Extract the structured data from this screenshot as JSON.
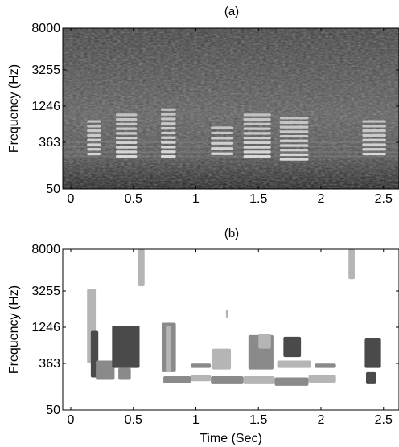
{
  "figure": {
    "panel_a_title": "(a)",
    "panel_b_title": "(b)"
  },
  "chart_data": [
    {
      "type": "heatmap",
      "title": "(a)",
      "xlabel": "",
      "ylabel": "Frequency (Hz)",
      "x_tick_labels": [
        "0",
        "0.5",
        "1",
        "1.5",
        "2",
        "2.5"
      ],
      "x_ticks": [
        0,
        0.5,
        1,
        1.5,
        2,
        2.5
      ],
      "xlim": [
        0,
        2.65
      ],
      "y_tick_labels": [
        "50",
        "363",
        "1246",
        "3255",
        "8000"
      ],
      "yscale": "erb-like (non-linear)",
      "colormap": "grayscale",
      "harmonic_segments": [
        {
          "t0": 0.13,
          "t1": 0.24,
          "f": [
            200,
            800
          ]
        },
        {
          "t0": 0.36,
          "t1": 0.53,
          "f": [
            180,
            1000
          ]
        },
        {
          "t0": 0.72,
          "t1": 0.84,
          "f": [
            180,
            1200
          ]
        },
        {
          "t0": 1.12,
          "t1": 1.3,
          "f": [
            200,
            650
          ]
        },
        {
          "t0": 1.38,
          "t1": 1.6,
          "f": [
            180,
            1000
          ]
        },
        {
          "t0": 1.67,
          "t1": 1.9,
          "f": [
            160,
            900
          ]
        },
        {
          "t0": 2.33,
          "t1": 2.52,
          "f": [
            200,
            800
          ]
        }
      ]
    },
    {
      "type": "heatmap",
      "title": "(b)",
      "xlabel": "Time (Sec)",
      "ylabel": "Frequency (Hz)",
      "x_tick_labels": [
        "0",
        "0.5",
        "1",
        "1.5",
        "2",
        "2.5"
      ],
      "x_ticks": [
        0,
        0.5,
        1,
        1.5,
        2,
        2.5
      ],
      "xlim": [
        0,
        2.65
      ],
      "y_tick_labels": [
        "50",
        "363",
        "1246",
        "3255",
        "8000"
      ],
      "yscale": "erb-like (non-linear)",
      "legend": "none",
      "segment_colors": {
        "light": "#b5b5b5",
        "mid": "#8a8a8a",
        "dark": "#4a4a4a"
      },
      "segments": [
        {
          "t0": 0.13,
          "t1": 0.2,
          "f0": 363,
          "f1": 3400,
          "shade": "light"
        },
        {
          "t0": 0.16,
          "t1": 0.22,
          "f0": 200,
          "f1": 1100,
          "shade": "dark"
        },
        {
          "t0": 0.2,
          "t1": 0.35,
          "f0": 180,
          "f1": 400,
          "shade": "mid"
        },
        {
          "t0": 0.33,
          "t1": 0.55,
          "f0": 300,
          "f1": 1300,
          "shade": "dark"
        },
        {
          "t0": 0.38,
          "t1": 0.48,
          "f0": 180,
          "f1": 300,
          "shade": "mid"
        },
        {
          "t0": 0.54,
          "t1": 0.59,
          "f0": 3600,
          "f1": 8000,
          "shade": "light"
        },
        {
          "t0": 0.73,
          "t1": 0.84,
          "f0": 250,
          "f1": 1400,
          "shade": "mid"
        },
        {
          "t0": 0.76,
          "t1": 0.8,
          "f0": 250,
          "f1": 1300,
          "shade": "light"
        },
        {
          "t0": 0.74,
          "t1": 0.96,
          "f0": 155,
          "f1": 210,
          "shade": "mid"
        },
        {
          "t0": 0.96,
          "t1": 1.12,
          "f0": 170,
          "f1": 220,
          "shade": "light"
        },
        {
          "t0": 0.96,
          "t1": 1.12,
          "f0": 300,
          "f1": 360,
          "shade": "mid"
        },
        {
          "t0": 1.13,
          "t1": 1.28,
          "f0": 280,
          "f1": 600,
          "shade": "light"
        },
        {
          "t0": 1.12,
          "t1": 1.38,
          "f0": 150,
          "f1": 210,
          "shade": "mid"
        },
        {
          "t0": 1.24,
          "t1": 1.26,
          "f0": 1600,
          "f1": 2000,
          "shade": "light"
        },
        {
          "t0": 1.38,
          "t1": 1.63,
          "f0": 150,
          "f1": 210,
          "shade": "light"
        },
        {
          "t0": 1.42,
          "t1": 1.62,
          "f0": 280,
          "f1": 950,
          "shade": "mid"
        },
        {
          "t0": 1.5,
          "t1": 1.6,
          "f0": 600,
          "f1": 1000,
          "shade": "light"
        },
        {
          "t0": 1.63,
          "t1": 1.9,
          "f0": 140,
          "f1": 200,
          "shade": "mid"
        },
        {
          "t0": 1.65,
          "t1": 1.92,
          "f0": 300,
          "f1": 400,
          "shade": "light"
        },
        {
          "t0": 1.7,
          "t1": 1.84,
          "f0": 450,
          "f1": 900,
          "shade": "dark"
        },
        {
          "t0": 1.9,
          "t1": 2.12,
          "f0": 160,
          "f1": 220,
          "shade": "light"
        },
        {
          "t0": 1.95,
          "t1": 2.12,
          "f0": 300,
          "f1": 360,
          "shade": "mid"
        },
        {
          "t0": 2.22,
          "t1": 2.27,
          "f0": 4200,
          "f1": 8000,
          "shade": "light"
        },
        {
          "t0": 2.35,
          "t1": 2.48,
          "f0": 300,
          "f1": 850,
          "shade": "dark"
        },
        {
          "t0": 2.36,
          "t1": 2.44,
          "f0": 150,
          "f1": 250,
          "shade": "dark"
        }
      ]
    }
  ]
}
